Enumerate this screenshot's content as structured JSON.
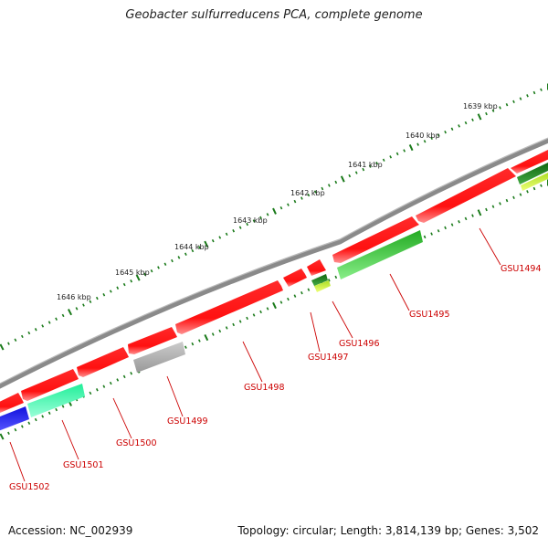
{
  "title": "Geobacter sulfurreducens PCA, complete genome",
  "footer": {
    "accession": "Accession: NC_002939",
    "summary": "Topology: circular; Length: 3,814,139 bp; Genes: 3,502"
  },
  "colors": {
    "backbone": "#8a8a8a",
    "tick": "#1a7a1a",
    "forward_gene": "#ff1111",
    "label": "#cc0000",
    "leader": "#cc0000"
  },
  "scale": {
    "unit": "kbp",
    "labels": [
      "1639 kbp",
      "1640 kbp",
      "1641 kbp",
      "1642 kbp",
      "1643 kbp",
      "1644 kbp",
      "1645 kbp",
      "1646 kbp"
    ]
  },
  "genes": [
    {
      "label": "GSU1494",
      "color": "#ff1111",
      "strand": "+"
    },
    {
      "label": "GSU1495",
      "color": "#33bb33",
      "strand": "-"
    },
    {
      "label": "GSU1496",
      "color": "#228822",
      "strand": "-"
    },
    {
      "label": "GSU1497",
      "color": "#ff1111",
      "strand": "+"
    },
    {
      "label": "GSU1498",
      "color": "#ff1111",
      "strand": "+"
    },
    {
      "label": "GSU1499",
      "color": "#bbbbbb",
      "strand": "-"
    },
    {
      "label": "GSU1500",
      "color": "#ff1111",
      "strand": "+"
    },
    {
      "label": "GSU1501",
      "color": "#22ee99",
      "strand": "-"
    },
    {
      "label": "GSU1502",
      "color": "#2222ee",
      "strand": "-"
    }
  ],
  "extra_features": [
    {
      "color": "#ff1111",
      "strand": "+"
    },
    {
      "color": "#ff1111",
      "strand": "+"
    },
    {
      "color": "#ff1111",
      "strand": "+"
    },
    {
      "color": "#ff1111",
      "strand": "+"
    },
    {
      "color": "#ccee44",
      "strand": "-"
    },
    {
      "color": "#228822",
      "strand": "-"
    }
  ]
}
